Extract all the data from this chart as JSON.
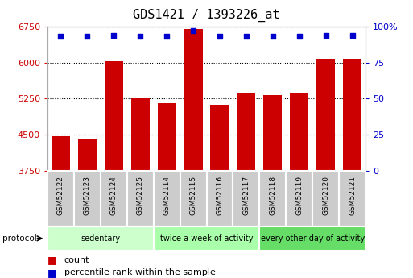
{
  "title": "GDS1421 / 1393226_at",
  "samples": [
    "GSM52122",
    "GSM52123",
    "GSM52124",
    "GSM52125",
    "GSM52114",
    "GSM52115",
    "GSM52116",
    "GSM52117",
    "GSM52118",
    "GSM52119",
    "GSM52120",
    "GSM52121"
  ],
  "counts": [
    4480,
    4420,
    6020,
    5250,
    5150,
    6700,
    5130,
    5380,
    5320,
    5380,
    6080,
    6070
  ],
  "percentiles": [
    93,
    93,
    94,
    93,
    93,
    97,
    93,
    93,
    93,
    93,
    94,
    94
  ],
  "bar_color": "#cc0000",
  "dot_color": "#0000cc",
  "ylim_left": [
    3750,
    6750
  ],
  "ylim_right": [
    0,
    100
  ],
  "yticks_left": [
    3750,
    4500,
    5250,
    6000,
    6750
  ],
  "yticks_right": [
    0,
    25,
    50,
    75,
    100
  ],
  "groups": [
    {
      "label": "sedentary",
      "start": 0,
      "end": 4,
      "color": "#ccffcc"
    },
    {
      "label": "twice a week of activity",
      "start": 4,
      "end": 8,
      "color": "#aaffaa"
    },
    {
      "label": "every other day of activity",
      "start": 8,
      "end": 12,
      "color": "#66dd66"
    }
  ],
  "protocol_label": "protocol",
  "legend_count_label": "count",
  "legend_pct_label": "percentile rank within the sample",
  "bg_color": "#ffffff",
  "plot_bg_color": "#ffffff",
  "grid_color": "#000000",
  "tick_color_left": "#cc0000",
  "tick_color_right": "#0000cc",
  "bar_bottom": 3750,
  "bar_width": 0.7,
  "sample_box_color": "#cccccc",
  "sample_box_edge": "#ffffff"
}
